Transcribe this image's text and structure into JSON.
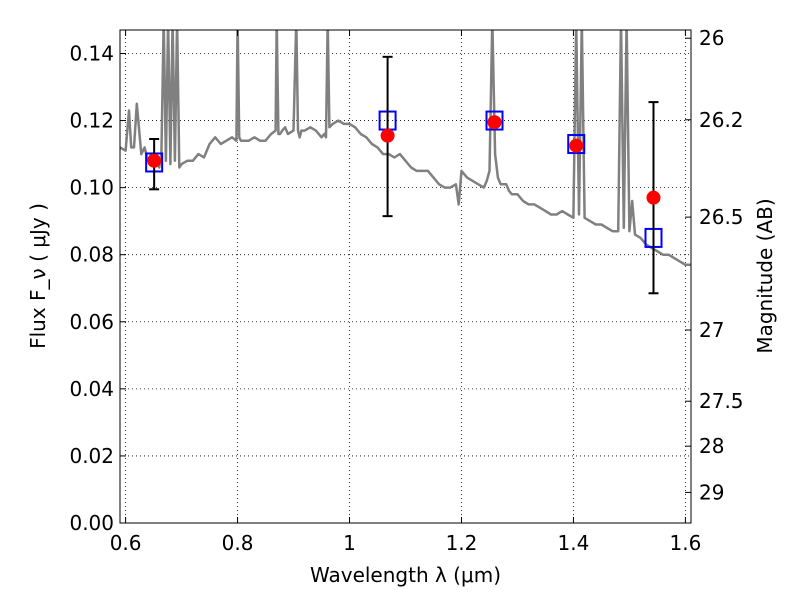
{
  "chart_data": {
    "type": "scatter",
    "xlabel": "Wavelength  λ (μm)",
    "ylabel": "Flux  F_ν  ( μJy )",
    "ylabel_right": "Magnitude (AB)",
    "xlim": [
      0.59,
      1.61
    ],
    "ylim": [
      0.0,
      0.147
    ],
    "x_ticks": [
      0.6,
      0.8,
      1.0,
      1.2,
      1.4,
      1.6
    ],
    "x_tick_labels": [
      "0.6",
      "0.8",
      "1",
      "1.2",
      "1.4",
      "1.6"
    ],
    "y_ticks": [
      0.0,
      0.02,
      0.04,
      0.06,
      0.08,
      0.1,
      0.12,
      0.14
    ],
    "y_tick_labels": [
      "0.00",
      "0.02",
      "0.04",
      "0.06",
      "0.08",
      "0.10",
      "0.12",
      "0.14"
    ],
    "right_ticks": [
      {
        "mag": 26,
        "label": "26"
      },
      {
        "mag": 26.2,
        "label": "26.2"
      },
      {
        "mag": 26.5,
        "label": "26.5"
      },
      {
        "mag": 27,
        "label": "27"
      },
      {
        "mag": 27.5,
        "label": "27.5"
      },
      {
        "mag": 28,
        "label": "28"
      },
      {
        "mag": 29,
        "label": "29"
      }
    ],
    "grid": true,
    "model_spectrum": {
      "color": "#808080",
      "x": [
        0.59,
        0.6,
        0.606,
        0.61,
        0.615,
        0.62,
        0.628,
        0.634,
        0.64,
        0.646,
        0.652,
        0.656,
        0.66,
        0.664,
        0.668,
        0.672,
        0.676,
        0.68,
        0.684,
        0.688,
        0.692,
        0.696,
        0.7,
        0.71,
        0.72,
        0.73,
        0.74,
        0.75,
        0.76,
        0.77,
        0.78,
        0.79,
        0.798,
        0.8,
        0.803,
        0.806,
        0.81,
        0.82,
        0.83,
        0.84,
        0.85,
        0.86,
        0.868,
        0.87,
        0.873,
        0.876,
        0.88,
        0.885,
        0.89,
        0.9,
        0.905,
        0.908,
        0.911,
        0.914,
        0.92,
        0.93,
        0.94,
        0.95,
        0.955,
        0.958,
        0.961,
        0.964,
        0.97,
        0.98,
        0.99,
        1.0,
        1.01,
        1.02,
        1.03,
        1.04,
        1.05,
        1.06,
        1.07,
        1.08,
        1.09,
        1.1,
        1.11,
        1.12,
        1.13,
        1.14,
        1.15,
        1.16,
        1.17,
        1.18,
        1.19,
        1.195,
        1.2,
        1.21,
        1.22,
        1.23,
        1.24,
        1.245,
        1.25,
        1.255,
        1.26,
        1.265,
        1.27,
        1.28,
        1.285,
        1.29,
        1.3,
        1.31,
        1.32,
        1.33,
        1.34,
        1.35,
        1.36,
        1.37,
        1.38,
        1.39,
        1.4,
        1.405,
        1.41,
        1.415,
        1.42,
        1.43,
        1.44,
        1.45,
        1.46,
        1.47,
        1.48,
        1.485,
        1.49,
        1.495,
        1.5,
        1.505,
        1.51,
        1.52,
        1.53,
        1.54,
        1.55,
        1.56,
        1.57,
        1.58,
        1.59,
        1.6,
        1.61
      ],
      "y": [
        0.112,
        0.111,
        0.123,
        0.112,
        0.112,
        0.125,
        0.11,
        0.112,
        0.108,
        0.11,
        0.107,
        0.109,
        0.106,
        0.11,
        0.15,
        0.108,
        0.15,
        0.107,
        0.15,
        0.108,
        0.15,
        0.106,
        0.107,
        0.108,
        0.108,
        0.11,
        0.109,
        0.113,
        0.115,
        0.113,
        0.114,
        0.115,
        0.114,
        0.15,
        0.115,
        0.114,
        0.114,
        0.114,
        0.115,
        0.114,
        0.114,
        0.116,
        0.117,
        0.15,
        0.116,
        0.116,
        0.117,
        0.118,
        0.116,
        0.117,
        0.15,
        0.117,
        0.115,
        0.117,
        0.117,
        0.118,
        0.117,
        0.115,
        0.116,
        0.115,
        0.15,
        0.118,
        0.119,
        0.12,
        0.119,
        0.119,
        0.118,
        0.116,
        0.115,
        0.113,
        0.112,
        0.11,
        0.11,
        0.109,
        0.11,
        0.108,
        0.106,
        0.105,
        0.105,
        0.105,
        0.103,
        0.101,
        0.1,
        0.1,
        0.101,
        0.095,
        0.105,
        0.103,
        0.102,
        0.101,
        0.1,
        0.102,
        0.105,
        0.15,
        0.11,
        0.103,
        0.101,
        0.101,
        0.099,
        0.098,
        0.098,
        0.096,
        0.095,
        0.095,
        0.094,
        0.093,
        0.092,
        0.092,
        0.093,
        0.092,
        0.091,
        0.15,
        0.092,
        0.15,
        0.091,
        0.09,
        0.089,
        0.089,
        0.088,
        0.087,
        0.087,
        0.15,
        0.088,
        0.15,
        0.087,
        0.096,
        0.086,
        0.085,
        0.083,
        0.082,
        0.081,
        0.08,
        0.08,
        0.079,
        0.078,
        0.077,
        0.077
      ]
    },
    "series": [
      {
        "name": "",
        "marker": "square",
        "color": "#0000ff",
        "x": [
          0.651,
          1.068,
          1.259,
          1.405,
          1.543
        ],
        "y": [
          0.1075,
          0.12,
          0.12,
          0.113,
          0.085
        ]
      },
      {
        "name": "",
        "marker": "circle",
        "color": "#ff0000",
        "x": [
          0.651,
          1.068,
          1.259,
          1.405,
          1.543
        ],
        "y": [
          0.108,
          0.1155,
          0.1195,
          0.1125,
          0.097
        ],
        "error_low": [
          0.0995,
          0.0915,
          null,
          null,
          0.0685
        ],
        "error_high": [
          0.1145,
          0.139,
          null,
          null,
          0.1255
        ]
      }
    ]
  }
}
